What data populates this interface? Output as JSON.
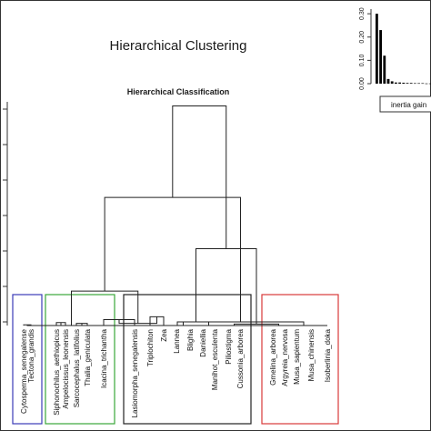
{
  "chart_data": {
    "type": "dendrogram",
    "title": "Hierarchical Clustering",
    "subtitle": "Hierarchical Classification",
    "leaves": [
      "Cytosperma_senegalense",
      "Tectona_grandis",
      "Siphonochilus_aethiopicus",
      "Ampelocissus_leonensis",
      "Sarcocephalus_latifolius",
      "Thalia_geniculata",
      "Icacina_trichantha",
      "Lasiomorpha_senegalensis",
      "Triplochiton",
      "Zea",
      "Lannea",
      "Blighia",
      "Daniellia",
      "Manihot_esculenta",
      "Piliostigma",
      "Cussonia_arborea",
      "Gmelina_arborea",
      "Argyreia_nervosa",
      "Musa_sapientum",
      "Musa_chinensis",
      "Isoberlinia_doka"
    ],
    "clusters": [
      {
        "leaves": [
          0,
          1
        ],
        "color": "#3b3bb8"
      },
      {
        "leaves": [
          2,
          6
        ],
        "color": "#3aa63a"
      },
      {
        "leaves": [
          7,
          15
        ],
        "color": "#222222"
      },
      {
        "leaves": [
          16,
          20
        ],
        "color": "#d83a3a"
      }
    ],
    "merges": [
      {
        "left": 0,
        "right": 1,
        "height": 0.1
      },
      {
        "left": 2,
        "right": 3,
        "height": 0.4
      },
      {
        "left": 4,
        "right": 5,
        "height": 0.3
      },
      {
        "left": 6,
        "right": 7,
        "height": 0.8
      },
      {
        "left": 8,
        "right": 9,
        "height": 1.2
      },
      {
        "left": 10,
        "right": 11,
        "height": 0.0
      },
      {
        "left": 12,
        "right": 13,
        "height": 0.0
      },
      {
        "left": 14,
        "right": 15,
        "height": 0.0
      },
      {
        "left": 16,
        "right": 17,
        "height": 0.0
      },
      {
        "left": 18,
        "right": 19,
        "height": 0.0
      },
      {
        "left": 20,
        "right": 21,
        "height": 0.0
      },
      {
        "left": 22,
        "right": 23,
        "height": 0.0
      },
      {
        "left": 24,
        "right": 25,
        "height": 0.3
      },
      {
        "left": 26,
        "right": 27,
        "height": 0.5
      },
      {
        "left": 28,
        "right": 29,
        "height": 0.2
      },
      {
        "left": 30,
        "right": 31,
        "height": 0.5
      },
      {
        "left": 32,
        "right": 33,
        "height": 4.7
      },
      {
        "left": 34,
        "right": 35,
        "height": 10.5
      },
      {
        "left": 36,
        "right": 37,
        "height": 17.5
      },
      {
        "left": 38,
        "right": 39,
        "height": 30.0
      }
    ],
    "inset": {
      "type": "bar",
      "legend": "inertia gain",
      "ticks": [
        "0.00",
        "0.10",
        "0.20",
        "0.30"
      ],
      "ylim": [
        0,
        0.32
      ],
      "values": [
        0.3,
        0.23,
        0.12,
        0.02,
        0.01,
        0.005,
        0.005,
        0.004,
        0.003,
        0.003,
        0.002,
        0.002,
        0.002,
        0.001,
        0.001
      ]
    }
  }
}
